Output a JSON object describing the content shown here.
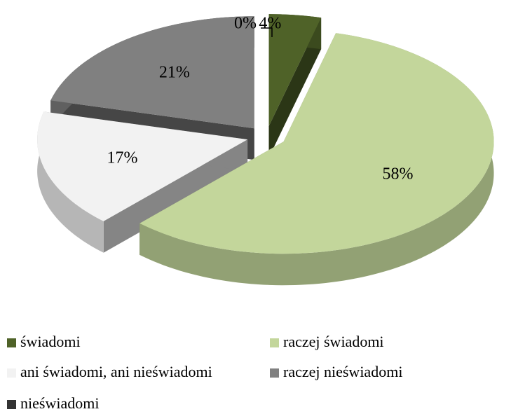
{
  "chart_data": {
    "type": "pie",
    "three_d": true,
    "exploded": true,
    "categories": [
      "świadomi",
      "raczej świadomi",
      "ani świadomi, ani nieświadomi",
      "raczej nieświadomi",
      "nieświadomi"
    ],
    "values": [
      4,
      58,
      17,
      21,
      0
    ],
    "value_labels": [
      "4%",
      "58%",
      "17%",
      "21%",
      "0%"
    ],
    "colors": [
      "#4f6228",
      "#c3d69b",
      "#f2f2f2",
      "#808080",
      "#333333"
    ],
    "legend": "bottom"
  }
}
